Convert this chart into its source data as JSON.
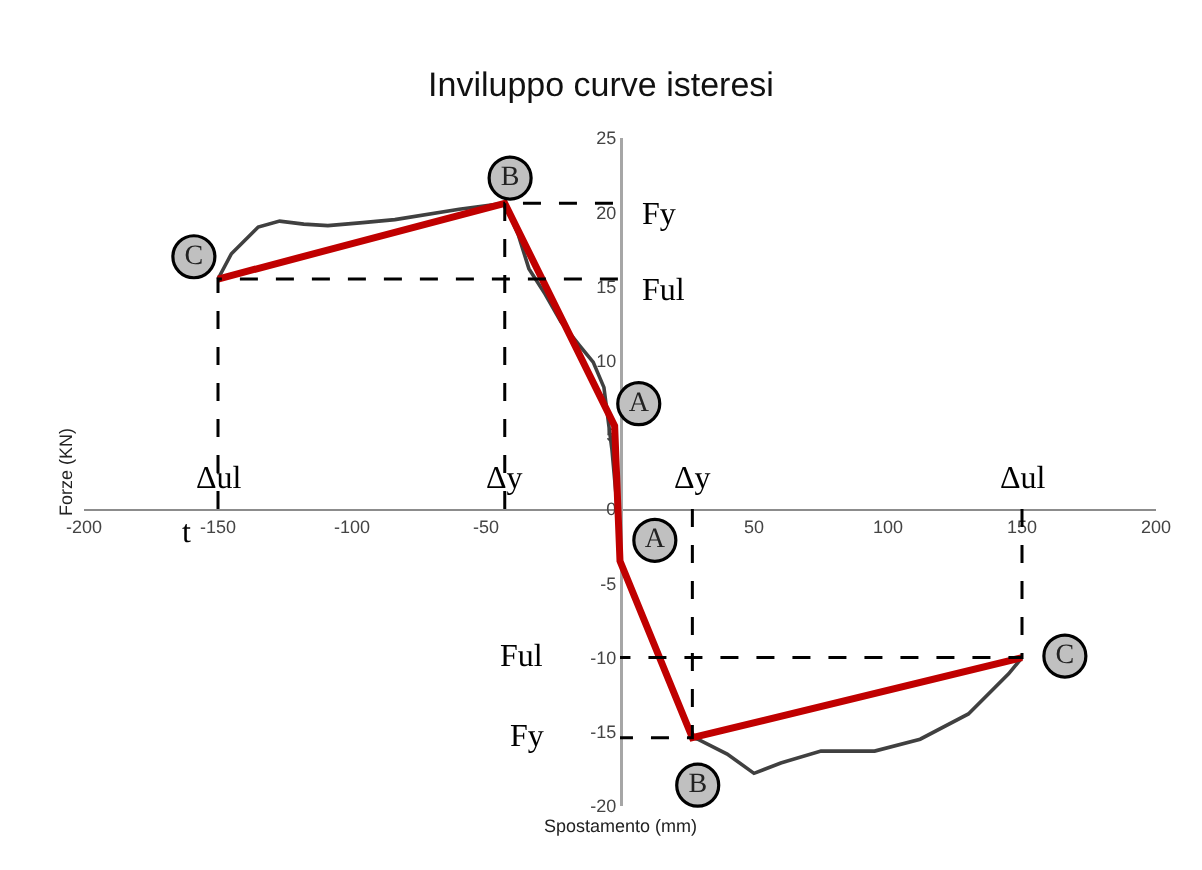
{
  "chart_data": {
    "type": "line",
    "title": "Inviluppo curve isteresi",
    "xlabel": "Spostamento (mm)",
    "ylabel": "Forze (KN)",
    "xlim": [
      -200,
      200
    ],
    "xticks": [
      -200,
      -150,
      -100,
      -50,
      50,
      100,
      150,
      200
    ],
    "ylim": [
      -20,
      25
    ],
    "yticks": [
      -20,
      -15,
      -10,
      -5,
      0,
      5,
      10,
      15,
      20,
      25
    ],
    "marker": "none",
    "line_style": "solid",
    "series": [
      {
        "color": "#404040",
        "x": [
          -150,
          -145,
          -135,
          -127,
          -118,
          -109,
          -96,
          -84,
          -60,
          -43,
          -38,
          -34,
          -28,
          -22,
          -15,
          -10,
          -6,
          -3,
          -1,
          0,
          10,
          20,
          27,
          29,
          40,
          50,
          60,
          75,
          95,
          112,
          130,
          145,
          150
        ],
        "values": [
          15.5,
          17.2,
          19.0,
          19.4,
          19.2,
          19.1,
          19.3,
          19.5,
          20.2,
          20.6,
          18.5,
          16.2,
          14.5,
          12.6,
          11.0,
          9.9,
          8.2,
          4.0,
          0,
          -3.5,
          -8.0,
          -12.5,
          -15.4,
          -15.5,
          -16.5,
          -17.8,
          -17.1,
          -16.3,
          -16.3,
          -15.5,
          -13.8,
          -11.1,
          -10.0
        ]
      },
      {
        "color": "#c00000",
        "x": [
          -150,
          -43,
          -2,
          0,
          27,
          150
        ],
        "values": [
          15.5,
          20.6,
          5.6,
          -3.5,
          -15.4,
          -10.0
        ]
      },
      {
        "color": "#000000",
        "line_style": "dashed",
        "x": [
          -150,
          -150,
          0
        ],
        "values": [
          0,
          15.5,
          15.5
        ]
      },
      {
        "color": "#000000",
        "line_style": "dashed",
        "x": [
          -43,
          -43,
          0
        ],
        "values": [
          0,
          20.6,
          20.6
        ]
      },
      {
        "color": "#000000",
        "line_style": "dashed",
        "x": [
          27,
          27,
          0
        ],
        "values": [
          0,
          -15.4,
          -15.4
        ]
      },
      {
        "color": "#000000",
        "line_style": "dashed",
        "x": [
          150,
          150,
          0
        ],
        "values": [
          0,
          -10.0,
          -10.0
        ]
      },
      {
        "type": "scatter",
        "marker": "circle",
        "color": "#c0c0c0",
        "x": [
          -159,
          -41,
          7,
          13,
          29,
          166
        ],
        "values": [
          17,
          22.3,
          7.1,
          -2.1,
          -18.6,
          -9.9
        ],
        "value_labels": [
          "C",
          "B",
          "A",
          "A",
          "B",
          "C"
        ]
      }
    ],
    "annotations": [
      {
        "text": "Δul",
        "x": -150,
        "y": 0
      },
      {
        "text": "t",
        "x": -150,
        "y": 0
      },
      {
        "text": "Δy",
        "x": -43,
        "y": 0
      },
      {
        "text": "Δy",
        "x": 27,
        "y": 0
      },
      {
        "text": "Δul",
        "x": 150,
        "y": 0
      },
      {
        "text": "Fy",
        "x": 0,
        "y": 20.6
      },
      {
        "text": "Ful",
        "x": 0,
        "y": 15.5
      },
      {
        "text": "Ful",
        "x": 0,
        "y": -10.0
      },
      {
        "text": "Fy",
        "x": 0,
        "y": -15.4
      }
    ]
  }
}
